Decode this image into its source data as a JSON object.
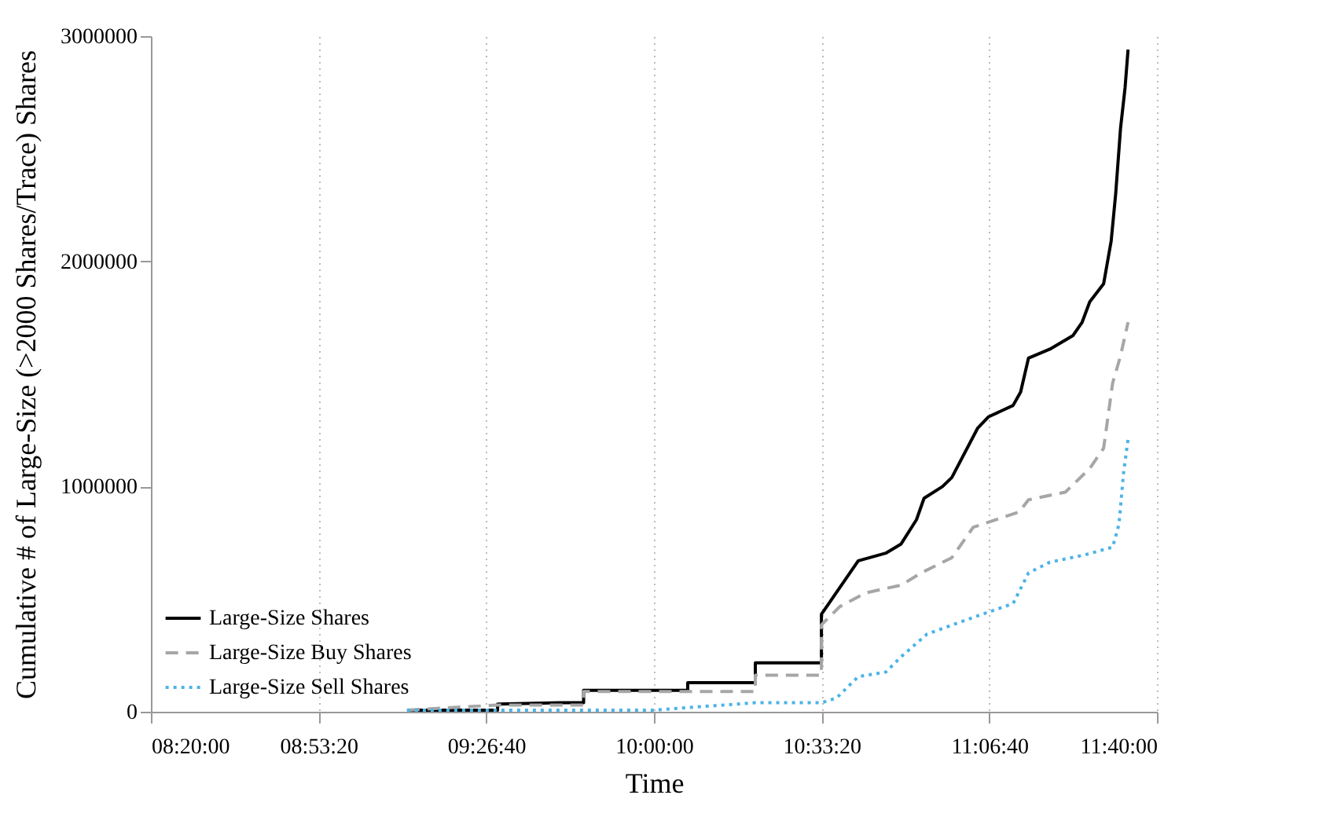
{
  "chart_data": {
    "type": "line",
    "xlabel": "Time",
    "ylabel": "Cumulative # of Large-Size (>2000 Shares/Trace) Shares",
    "xlim": [
      8.3333,
      11.6667
    ],
    "xticks": [
      {
        "value": 8.3333,
        "label": "08:20:00"
      },
      {
        "value": 8.8889,
        "label": "08:53:20"
      },
      {
        "value": 9.4444,
        "label": "09:26:40"
      },
      {
        "value": 10,
        "label": "10:00:00"
      },
      {
        "value": 10.5556,
        "label": "10:33:20"
      },
      {
        "value": 11.1111,
        "label": "11:06:40"
      },
      {
        "value": 11.6667,
        "label": "11:40:00"
      }
    ],
    "ylim": [
      0,
      3000000
    ],
    "yticks": [
      0,
      1000000,
      2000000,
      3000000
    ],
    "grid": "x",
    "legend": "bottom left",
    "series": [
      {
        "name": "Large-Size Shares",
        "color": "#000000",
        "line_style": "solid",
        "x": [
          9.182,
          9.482,
          9.482,
          9.69,
          9.767,
          9.767,
          10.112,
          10.112,
          10.336,
          10.336,
          10.555,
          10.555,
          10.677,
          10.768,
          10.819,
          10.87,
          10.895,
          10.956,
          10.987,
          11.073,
          11.109,
          11.19,
          11.215,
          11.241,
          11.312,
          11.388,
          11.419,
          11.444,
          11.49,
          11.515,
          11.53,
          11.546,
          11.561,
          11.571
        ],
        "values": [
          7000,
          7000,
          34000,
          40000,
          40000,
          95000,
          95000,
          129000,
          129000,
          217000,
          217000,
          433000,
          670000,
          704000,
          745000,
          853000,
          948000,
          1000000,
          1040000,
          1260000,
          1310000,
          1360000,
          1420000,
          1570000,
          1610000,
          1670000,
          1730000,
          1820000,
          1900000,
          2090000,
          2300000,
          2590000,
          2770000,
          2940000
        ]
      },
      {
        "name": "Large-Size Buy Shares",
        "color": "#a6a6a6",
        "line_style": "dashed",
        "x": [
          9.182,
          9.482,
          9.767,
          9.767,
          10.336,
          10.336,
          10.555,
          10.555,
          10.616,
          10.702,
          10.819,
          10.885,
          10.987,
          11.058,
          11.21,
          11.241,
          11.363,
          11.444,
          11.49,
          11.52,
          11.546,
          11.571
        ],
        "values": [
          7000,
          30000,
          30000,
          90000,
          90000,
          162000,
          162000,
          386000,
          467000,
          528000,
          562000,
          616000,
          684000,
          819000,
          887000,
          941000,
          975000,
          1080000,
          1170000,
          1460000,
          1580000,
          1730000
        ]
      },
      {
        "name": "Large-Size Sell Shares",
        "color": "#4db3e6",
        "line_style": "dotted",
        "x": [
          9.182,
          9.995,
          10.336,
          10.555,
          10.605,
          10.677,
          10.768,
          10.819,
          10.905,
          11.073,
          11.19,
          11.241,
          11.312,
          11.429,
          11.52,
          11.541,
          11.556,
          11.571
        ],
        "values": [
          7000,
          7000,
          40000,
          40000,
          61000,
          156000,
          176000,
          244000,
          345000,
          426000,
          480000,
          616000,
          664000,
          697000,
          731000,
          833000,
          1060000,
          1210000
        ]
      }
    ]
  }
}
